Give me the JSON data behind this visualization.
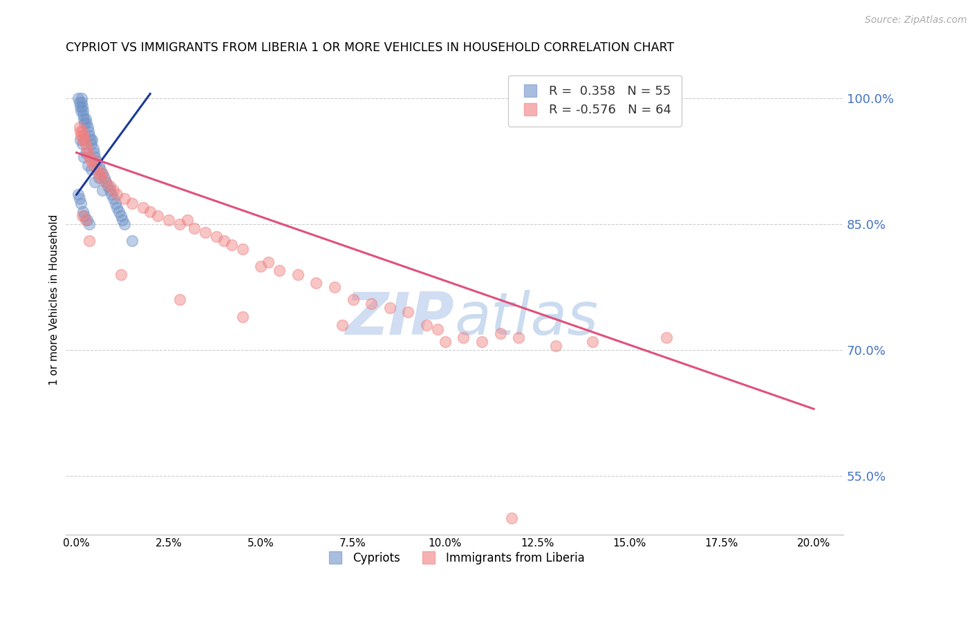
{
  "title": "CYPRIOT VS IMMIGRANTS FROM LIBERIA 1 OR MORE VEHICLES IN HOUSEHOLD CORRELATION CHART",
  "source": "Source: ZipAtlas.com",
  "ylabel": "1 or more Vehicles in Household",
  "x_tick_labels": [
    "0.0%",
    "2.5%",
    "5.0%",
    "7.5%",
    "10.0%",
    "12.5%",
    "15.0%",
    "17.5%",
    "20.0%"
  ],
  "x_tick_vals": [
    0.0,
    2.5,
    5.0,
    7.5,
    10.0,
    12.5,
    15.0,
    17.5,
    20.0
  ],
  "xlim": [
    -0.3,
    20.8
  ],
  "ylim": [
    48.0,
    104.0
  ],
  "right_ytick_vals": [
    55.0,
    70.0,
    85.0,
    100.0
  ],
  "right_ytick_labels": [
    "55.0%",
    "70.0%",
    "85.0%",
    "100.0%"
  ],
  "legend_R_blue": "0.358",
  "legend_N_blue": "55",
  "legend_R_pink": "-0.576",
  "legend_N_pink": "64",
  "blue_color": "#7094c8",
  "pink_color": "#f08080",
  "blue_line_color": "#1a3a9a",
  "pink_line_color": "#e0507a",
  "watermark_color": "#c8d8f0",
  "blue_x": [
    0.05,
    0.08,
    0.1,
    0.12,
    0.13,
    0.14,
    0.15,
    0.17,
    0.18,
    0.2,
    0.22,
    0.25,
    0.27,
    0.3,
    0.32,
    0.35,
    0.38,
    0.4,
    0.42,
    0.45,
    0.48,
    0.5,
    0.55,
    0.6,
    0.65,
    0.7,
    0.75,
    0.8,
    0.85,
    0.9,
    0.95,
    1.0,
    1.05,
    1.1,
    1.15,
    1.2,
    1.25,
    1.3,
    0.1,
    0.15,
    0.2,
    0.25,
    0.3,
    0.4,
    0.5,
    0.6,
    0.7,
    0.05,
    0.08,
    0.12,
    0.18,
    0.22,
    0.28,
    0.35,
    1.5
  ],
  "blue_y": [
    100.0,
    99.5,
    99.0,
    98.5,
    100.0,
    99.5,
    99.0,
    98.5,
    98.0,
    97.5,
    97.0,
    97.5,
    97.0,
    96.5,
    96.0,
    95.5,
    95.0,
    94.5,
    95.0,
    94.0,
    93.5,
    93.0,
    92.5,
    92.0,
    91.5,
    91.0,
    90.5,
    90.0,
    89.5,
    89.0,
    88.5,
    88.0,
    87.5,
    87.0,
    86.5,
    86.0,
    85.5,
    85.0,
    95.0,
    94.5,
    93.0,
    93.5,
    92.0,
    91.5,
    90.0,
    90.5,
    89.0,
    88.5,
    88.0,
    87.5,
    86.5,
    86.0,
    85.5,
    85.0,
    83.0
  ],
  "pink_x": [
    0.08,
    0.1,
    0.12,
    0.15,
    0.18,
    0.2,
    0.22,
    0.25,
    0.28,
    0.3,
    0.35,
    0.4,
    0.45,
    0.5,
    0.55,
    0.6,
    0.65,
    0.7,
    0.8,
    0.9,
    1.0,
    1.1,
    1.3,
    1.5,
    1.8,
    2.0,
    2.2,
    2.5,
    2.8,
    3.0,
    3.2,
    3.5,
    3.8,
    4.0,
    4.2,
    4.5,
    5.0,
    5.2,
    5.5,
    6.0,
    6.5,
    7.0,
    7.5,
    8.0,
    8.5,
    9.0,
    9.5,
    10.0,
    10.5,
    11.0,
    11.5,
    12.0,
    13.0,
    14.0,
    16.0,
    0.15,
    0.25,
    0.35,
    1.2,
    2.8,
    4.5,
    7.2,
    9.8,
    11.8
  ],
  "pink_y": [
    96.5,
    96.0,
    95.5,
    96.0,
    95.0,
    95.5,
    95.0,
    94.5,
    94.0,
    93.5,
    93.0,
    92.5,
    92.0,
    92.5,
    91.5,
    91.0,
    90.5,
    91.0,
    90.0,
    89.5,
    89.0,
    88.5,
    88.0,
    87.5,
    87.0,
    86.5,
    86.0,
    85.5,
    85.0,
    85.5,
    84.5,
    84.0,
    83.5,
    83.0,
    82.5,
    82.0,
    80.0,
    80.5,
    79.5,
    79.0,
    78.0,
    77.5,
    76.0,
    75.5,
    75.0,
    74.5,
    73.0,
    71.0,
    71.5,
    71.0,
    72.0,
    71.5,
    70.5,
    71.0,
    71.5,
    86.0,
    85.5,
    83.0,
    79.0,
    76.0,
    74.0,
    73.0,
    72.5,
    50.0
  ],
  "blue_trendline_x": [
    0.0,
    2.0
  ],
  "blue_trendline_y": [
    88.5,
    100.5
  ],
  "pink_trendline_x": [
    0.0,
    20.0
  ],
  "pink_trendline_y": [
    93.5,
    63.0
  ]
}
